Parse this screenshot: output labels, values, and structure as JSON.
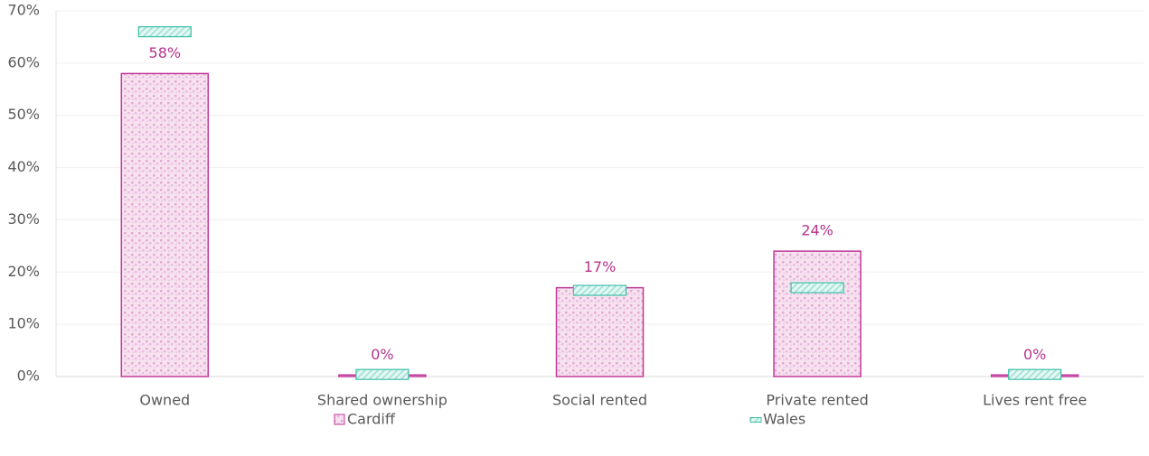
{
  "chart_data": {
    "type": "bar",
    "categories": [
      "Owned",
      "Shared ownership",
      "Social rented",
      "Private rented",
      "Lives rent free"
    ],
    "series": [
      {
        "name": "Cardiff",
        "color": "#c0399a",
        "mark": "bar",
        "values": [
          58,
          0.3,
          17,
          24,
          0.3
        ],
        "value_labels": [
          "58%",
          "0%",
          "17%",
          "24%",
          "0%"
        ]
      },
      {
        "name": "Wales",
        "color": "#3fbfa6",
        "mark": "dash",
        "values": [
          66,
          0.4,
          16.5,
          17,
          0.4
        ]
      }
    ],
    "ylim": [
      0,
      70
    ],
    "yticks": [
      {
        "value": 0,
        "label": "0%"
      },
      {
        "value": 10,
        "label": "10%"
      },
      {
        "value": 20,
        "label": "20%"
      },
      {
        "value": 30,
        "label": "30%"
      },
      {
        "value": 40,
        "label": "40%"
      },
      {
        "value": 50,
        "label": "50%"
      },
      {
        "value": 60,
        "label": "60%"
      },
      {
        "value": 70,
        "label": "70%"
      }
    ],
    "grid": true,
    "legend": "bottom"
  }
}
